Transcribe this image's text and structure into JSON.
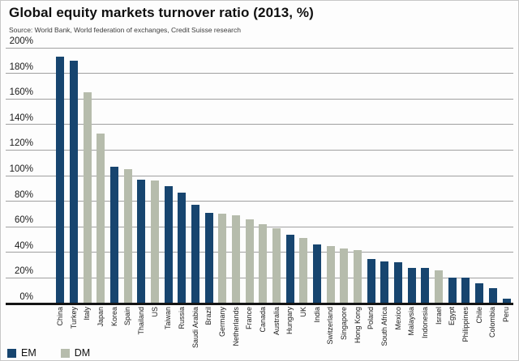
{
  "header": {
    "title": "Global equity markets turnover ratio (2013, %)",
    "source": "Source: World Bank, World federation of exchanges, Credit Suisse research"
  },
  "colors": {
    "em": "#17456f",
    "dm": "#b6bcac",
    "gridline": "#a0a0a0",
    "axis": "#141414"
  },
  "y_axis": {
    "tick_labels": [
      "0%",
      "20%",
      "40%",
      "60%",
      "80%",
      "100%",
      "120%",
      "140%",
      "160%",
      "180%",
      "200%"
    ],
    "max_percent": 200
  },
  "legend": [
    {
      "label": "EM",
      "group": "EM"
    },
    {
      "label": "DM",
      "group": "DM"
    }
  ],
  "chart_data": {
    "type": "bar",
    "title": "Global equity markets turnover ratio (2013, %)",
    "xlabel": "",
    "ylabel": "",
    "ylim": [
      0,
      200
    ],
    "grid": true,
    "legend_position": "bottom-left",
    "groups": {
      "EM": "#17456f",
      "DM": "#b6bcac"
    },
    "bars": [
      {
        "label": "China",
        "value": 193,
        "group": "EM"
      },
      {
        "label": "Turkey",
        "value": 190,
        "group": "EM"
      },
      {
        "label": "Italy",
        "value": 165,
        "group": "DM"
      },
      {
        "label": "Japan",
        "value": 133,
        "group": "DM"
      },
      {
        "label": "Korea",
        "value": 107,
        "group": "EM"
      },
      {
        "label": "Spain",
        "value": 105,
        "group": "DM"
      },
      {
        "label": "Thailand",
        "value": 97,
        "group": "EM"
      },
      {
        "label": "US",
        "value": 96,
        "group": "DM"
      },
      {
        "label": "Taiwan",
        "value": 92,
        "group": "EM"
      },
      {
        "label": "Russia",
        "value": 87,
        "group": "EM"
      },
      {
        "label": "Saudi Arabia",
        "value": 77,
        "group": "EM"
      },
      {
        "label": "Brazil",
        "value": 71,
        "group": "EM"
      },
      {
        "label": "Germany",
        "value": 70,
        "group": "DM"
      },
      {
        "label": "Netherlands",
        "value": 69,
        "group": "DM"
      },
      {
        "label": "France",
        "value": 66,
        "group": "DM"
      },
      {
        "label": "Canada",
        "value": 62,
        "group": "DM"
      },
      {
        "label": "Australia",
        "value": 59,
        "group": "DM"
      },
      {
        "label": "Hungary",
        "value": 54,
        "group": "EM"
      },
      {
        "label": "UK",
        "value": 51,
        "group": "DM"
      },
      {
        "label": "India",
        "value": 46,
        "group": "EM"
      },
      {
        "label": "Switzerland",
        "value": 45,
        "group": "DM"
      },
      {
        "label": "Singapore",
        "value": 43,
        "group": "DM"
      },
      {
        "label": "Hong Kong",
        "value": 42,
        "group": "DM"
      },
      {
        "label": "Poland",
        "value": 35,
        "group": "EM"
      },
      {
        "label": "South Africa",
        "value": 33,
        "group": "EM"
      },
      {
        "label": "Mexico",
        "value": 32,
        "group": "EM"
      },
      {
        "label": "Malaysia",
        "value": 28,
        "group": "EM"
      },
      {
        "label": "Indonesia",
        "value": 28,
        "group": "EM"
      },
      {
        "label": "Israel",
        "value": 26,
        "group": "DM"
      },
      {
        "label": "Egypt",
        "value": 20,
        "group": "EM"
      },
      {
        "label": "Philippines",
        "value": 20,
        "group": "EM"
      },
      {
        "label": "Chile",
        "value": 16,
        "group": "EM"
      },
      {
        "label": "Colombia",
        "value": 12,
        "group": "EM"
      },
      {
        "label": "Peru",
        "value": 4,
        "group": "EM"
      }
    ]
  }
}
